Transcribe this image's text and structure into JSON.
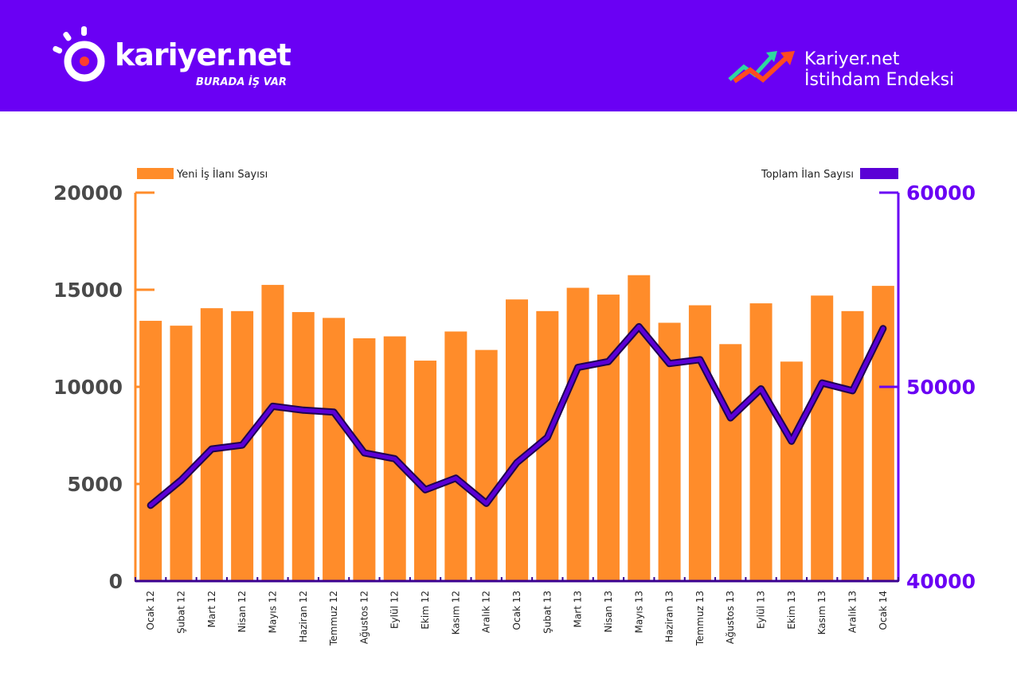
{
  "header": {
    "brand_name": "kariyer.net",
    "slogan": "BURADA İŞ VAR",
    "index_title_line1": "Kariyer.net",
    "index_title_line2": "İstihdam Endeksi",
    "background_color": "#6a00f4"
  },
  "chart_data": {
    "type": "bar",
    "categories": [
      "Ocak 12",
      "Şubat 12",
      "Mart 12",
      "Nisan 12",
      "Mayıs 12",
      "Haziran 12",
      "Temmuz 12",
      "Ağustos 12",
      "Eylül 12",
      "Ekim 12",
      "Kasım 12",
      "Aralık 12",
      "Ocak 13",
      "Şubat 13",
      "Mart 13",
      "Nisan 13",
      "Mayıs 13",
      "Haziran 13",
      "Temmuz 13",
      "Ağustos 13",
      "Eylül 13",
      "Ekim 13",
      "Kasım 13",
      "Aralık 13",
      "Ocak 14"
    ],
    "series": [
      {
        "name": "Yeni İş İlanı Sayısı",
        "type": "bar",
        "axis": "left",
        "color": "#ff8c2a",
        "values": [
          13400,
          13150,
          14050,
          13900,
          15250,
          13850,
          13550,
          12500,
          12600,
          11350,
          12850,
          11900,
          14500,
          13900,
          15100,
          14750,
          15750,
          13300,
          14200,
          12200,
          14300,
          11300,
          14700,
          13900,
          15200
        ]
      },
      {
        "name": "Toplam İlan Sayısı",
        "type": "line",
        "axis": "right",
        "color": "#5b00d6",
        "values": [
          43900,
          45200,
          46800,
          47000,
          49000,
          48800,
          48700,
          46600,
          46300,
          44700,
          45300,
          44000,
          46100,
          47400,
          51000,
          51300,
          53100,
          51200,
          51400,
          48400,
          49900,
          47200,
          50200,
          49800,
          53000
        ]
      }
    ],
    "left_axis": {
      "ylim": [
        0,
        20000
      ],
      "ticks": [
        "0",
        "5000",
        "10000",
        "15000",
        "20000"
      ],
      "color": "#ff8c2a"
    },
    "right_axis": {
      "ylim": [
        40000,
        60000
      ],
      "ticks": [
        "40000",
        "50000",
        "60000"
      ],
      "color": "#6a00f4"
    },
    "legend": {
      "left": "Yeni İş İlanı Sayısı",
      "right": "Toplam İlan Sayısı",
      "placement": "top"
    },
    "grid": false
  }
}
